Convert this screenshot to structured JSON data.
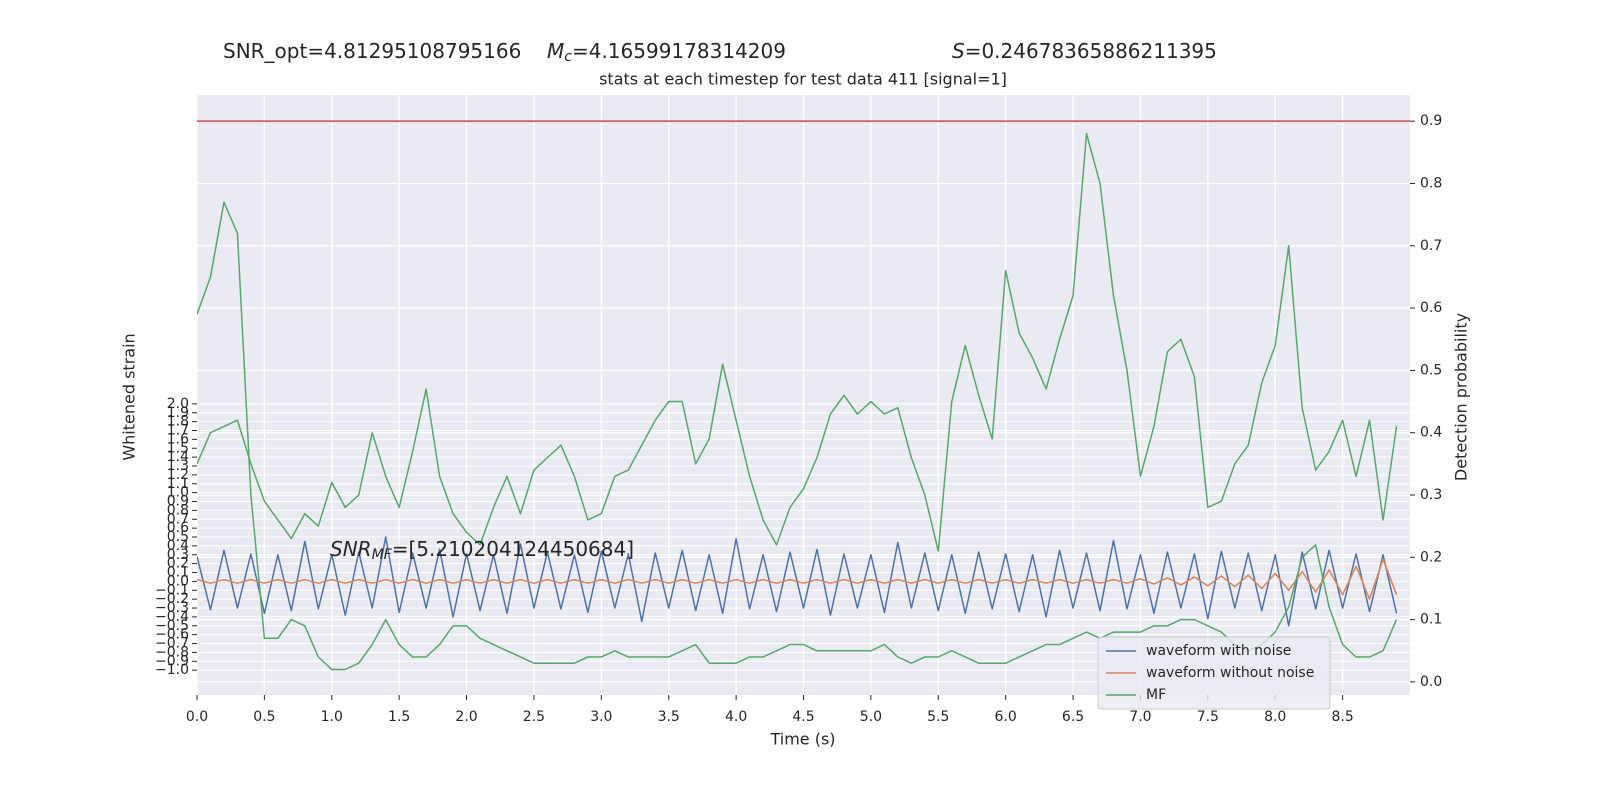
{
  "chart_data": {
    "type": "line",
    "header": [
      {
        "text": "SNR_opt=4.81295108795166"
      },
      {
        "symbol": "M",
        "subscript": "c",
        "text": "=4.16599178314209"
      },
      {
        "symbol": "S",
        "text": "=0.24678365886211395"
      }
    ],
    "title": "stats at each timestep for test data 411 [signal=1]",
    "annotation": {
      "symbol": "SNR",
      "subscript": "MF",
      "text": "=[5.210204124450684]"
    },
    "xlabel": "Time (s)",
    "ylabel": "Whitened strain",
    "y2label": "Detection probability",
    "xlim": [
      0,
      9.0
    ],
    "ylim": [
      -1.28,
      5.48
    ],
    "y2lim": [
      -0.021,
      0.942
    ],
    "xticks": [
      {
        "value": 0,
        "label": "0.0"
      },
      0.5,
      {
        "value": 1,
        "label": "1.0"
      },
      1.5,
      {
        "value": 2,
        "label": "2.0"
      },
      2.5,
      {
        "value": 3,
        "label": "3.0"
      },
      3.5,
      {
        "value": 4,
        "label": "4.0"
      },
      4.5,
      {
        "value": 5,
        "label": "5.0"
      },
      5.5,
      {
        "value": 6,
        "label": "6.0"
      },
      6.5,
      {
        "value": 7,
        "label": "7.0"
      },
      7.5,
      {
        "value": 8,
        "label": "8.0"
      },
      8.5
    ],
    "yticks": [
      {
        "value": -1,
        "label": "−1.0"
      },
      {
        "value": -0.9,
        "label": "−0.9"
      },
      {
        "value": -0.8,
        "label": "−0.8"
      },
      {
        "value": -0.7,
        "label": "−0.7"
      },
      {
        "value": -0.6,
        "label": "−0.6"
      },
      {
        "value": -0.5,
        "label": "−0.5"
      },
      {
        "value": -0.4,
        "label": "−0.4"
      },
      {
        "value": -0.3,
        "label": "−0.3"
      },
      {
        "value": -0.2,
        "label": "−0.2"
      },
      {
        "value": -0.1,
        "label": "−0.1"
      },
      {
        "value": 0,
        "label": "0.0"
      },
      0.1,
      0.2,
      0.3,
      0.4,
      0.5,
      0.6,
      0.7,
      0.8,
      0.9,
      {
        "value": 1,
        "label": "1.0"
      },
      1.1,
      1.2,
      1.3,
      1.4,
      1.5,
      1.6,
      1.7,
      1.8,
      1.9,
      {
        "value": 2,
        "label": "2.0"
      }
    ],
    "y2ticks": [
      {
        "value": 0,
        "label": "0.0"
      },
      0.1,
      0.2,
      0.3,
      0.4,
      0.5,
      0.6,
      0.7,
      0.8,
      0.9
    ],
    "grid": true,
    "legend": "lower right",
    "hlines": [
      {
        "value": 0.9,
        "axis": "y2",
        "color": "#c44e52"
      }
    ],
    "x": [
      0.0,
      0.1,
      0.2,
      0.3,
      0.4,
      0.5,
      0.6,
      0.7,
      0.8,
      0.9,
      1.0,
      1.1,
      1.2,
      1.3,
      1.4,
      1.5,
      1.6,
      1.7,
      1.8,
      1.9,
      2.0,
      2.1,
      2.2,
      2.3,
      2.4,
      2.5,
      2.6,
      2.7,
      2.8,
      2.9,
      3.0,
      3.1,
      3.2,
      3.3,
      3.4,
      3.5,
      3.6,
      3.7,
      3.8,
      3.9,
      4.0,
      4.1,
      4.2,
      4.3,
      4.4,
      4.5,
      4.6,
      4.7,
      4.8,
      4.9,
      5.0,
      5.1,
      5.2,
      5.3,
      5.4,
      5.5,
      5.6,
      5.7,
      5.8,
      5.9,
      6.0,
      6.1,
      6.2,
      6.3,
      6.4,
      6.5,
      6.6,
      6.7,
      6.8,
      6.9,
      7.0,
      7.1,
      7.2,
      7.3,
      7.4,
      7.5,
      7.6,
      7.7,
      7.8,
      7.9,
      8.0,
      8.1,
      8.2,
      8.3,
      8.4,
      8.5,
      8.6,
      8.7,
      8.8,
      8.9
    ],
    "series": [
      {
        "name": "waveform with noise",
        "color": "#4c72b0",
        "values": [
          0.28,
          -0.32,
          0.35,
          -0.3,
          0.31,
          -0.36,
          0.3,
          -0.33,
          0.45,
          -0.31,
          0.3,
          -0.38,
          0.33,
          -0.3,
          0.5,
          -0.35,
          0.32,
          -0.3,
          0.36,
          -0.4,
          0.31,
          -0.33,
          0.3,
          -0.36,
          0.42,
          -0.3,
          0.33,
          -0.31,
          0.3,
          -0.35,
          0.34,
          -0.3,
          0.31,
          -0.45,
          0.32,
          -0.3,
          0.35,
          -0.33,
          0.3,
          -0.36,
          0.48,
          -0.31,
          0.3,
          -0.34,
          0.33,
          -0.3,
          0.36,
          -0.38,
          0.31,
          -0.3,
          0.3,
          -0.35,
          0.44,
          -0.3,
          0.32,
          -0.33,
          0.3,
          -0.36,
          0.33,
          -0.31,
          0.31,
          -0.34,
          0.3,
          -0.4,
          0.35,
          -0.3,
          0.32,
          -0.33,
          0.46,
          -0.31,
          0.3,
          -0.36,
          0.33,
          -0.3,
          0.31,
          -0.42,
          0.34,
          -0.3,
          0.32,
          -0.33,
          0.3,
          -0.5,
          0.33,
          -0.31,
          0.35,
          -0.3,
          0.31,
          -0.34,
          0.3,
          -0.36
        ]
      },
      {
        "name": "waveform without noise",
        "color": "#dd8452",
        "values": [
          0.02,
          -0.02,
          0.02,
          -0.02,
          0.02,
          -0.02,
          0.02,
          -0.02,
          0.02,
          -0.02,
          0.02,
          -0.02,
          0.02,
          -0.02,
          0.02,
          -0.02,
          0.02,
          -0.02,
          0.02,
          -0.02,
          0.02,
          -0.02,
          0.02,
          -0.02,
          0.02,
          -0.02,
          0.02,
          -0.02,
          0.02,
          -0.02,
          0.02,
          -0.02,
          0.02,
          -0.02,
          0.02,
          -0.02,
          0.02,
          -0.02,
          0.02,
          -0.02,
          0.02,
          -0.02,
          0.02,
          -0.02,
          0.02,
          -0.02,
          0.02,
          -0.02,
          0.02,
          -0.02,
          0.02,
          -0.02,
          0.02,
          -0.02,
          0.02,
          -0.02,
          0.02,
          -0.02,
          0.02,
          -0.02,
          0.02,
          -0.02,
          0.02,
          -0.02,
          0.02,
          -0.02,
          0.02,
          -0.02,
          0.02,
          -0.02,
          0.03,
          -0.03,
          0.04,
          -0.04,
          0.05,
          -0.05,
          0.06,
          -0.06,
          0.07,
          -0.08,
          0.09,
          -0.1,
          0.11,
          -0.12,
          0.13,
          -0.15,
          0.17,
          -0.2,
          0.25,
          -0.15
        ]
      },
      {
        "name": "MF",
        "color": "#55a868",
        "axis": "y2",
        "values": [
          0.59,
          0.65,
          0.77,
          0.72,
          0.3,
          0.07,
          0.07,
          0.1,
          0.09,
          0.04,
          0.02,
          0.02,
          0.03,
          0.06,
          0.1,
          0.06,
          0.04,
          0.04,
          0.06,
          0.09,
          0.09,
          0.07,
          0.06,
          0.05,
          0.04,
          0.03,
          0.03,
          0.03,
          0.03,
          0.04,
          0.04,
          0.05,
          0.04,
          0.04,
          0.04,
          0.04,
          0.05,
          0.06,
          0.03,
          0.03,
          0.03,
          0.04,
          0.04,
          0.05,
          0.06,
          0.06,
          0.05,
          0.05,
          0.05,
          0.05,
          0.05,
          0.06,
          0.04,
          0.03,
          0.04,
          0.04,
          0.05,
          0.04,
          0.03,
          0.03,
          0.03,
          0.04,
          0.05,
          0.06,
          0.06,
          0.07,
          0.08,
          0.07,
          0.08,
          0.08,
          0.08,
          0.09,
          0.09,
          0.1,
          0.1,
          0.09,
          0.08,
          0.06,
          0.05,
          0.06,
          0.08,
          0.12,
          0.2,
          0.22,
          0.12,
          0.06,
          0.04,
          0.04,
          0.05,
          0.1
        ]
      },
      {
        "color": "#55a868",
        "axis": "y2",
        "values": [
          0.35,
          0.4,
          0.41,
          0.42,
          0.35,
          0.29,
          0.26,
          0.23,
          0.27,
          0.25,
          0.32,
          0.28,
          0.3,
          0.4,
          0.33,
          0.28,
          0.37,
          0.47,
          0.33,
          0.27,
          0.24,
          0.22,
          0.28,
          0.33,
          0.27,
          0.34,
          0.36,
          0.38,
          0.33,
          0.26,
          0.27,
          0.33,
          0.34,
          0.38,
          0.42,
          0.45,
          0.45,
          0.35,
          0.39,
          0.51,
          0.42,
          0.33,
          0.26,
          0.22,
          0.28,
          0.31,
          0.36,
          0.43,
          0.46,
          0.43,
          0.45,
          0.43,
          0.44,
          0.36,
          0.3,
          0.21,
          0.45,
          0.54,
          0.46,
          0.39,
          0.66,
          0.56,
          0.52,
          0.47,
          0.55,
          0.62,
          0.88,
          0.8,
          0.62,
          0.5,
          0.33,
          0.41,
          0.53,
          0.55,
          0.49,
          0.28,
          0.29,
          0.35,
          0.38,
          0.48,
          0.54,
          0.7,
          0.44,
          0.34,
          0.37,
          0.42,
          0.33,
          0.42,
          0.26,
          0.41
        ]
      }
    ]
  }
}
